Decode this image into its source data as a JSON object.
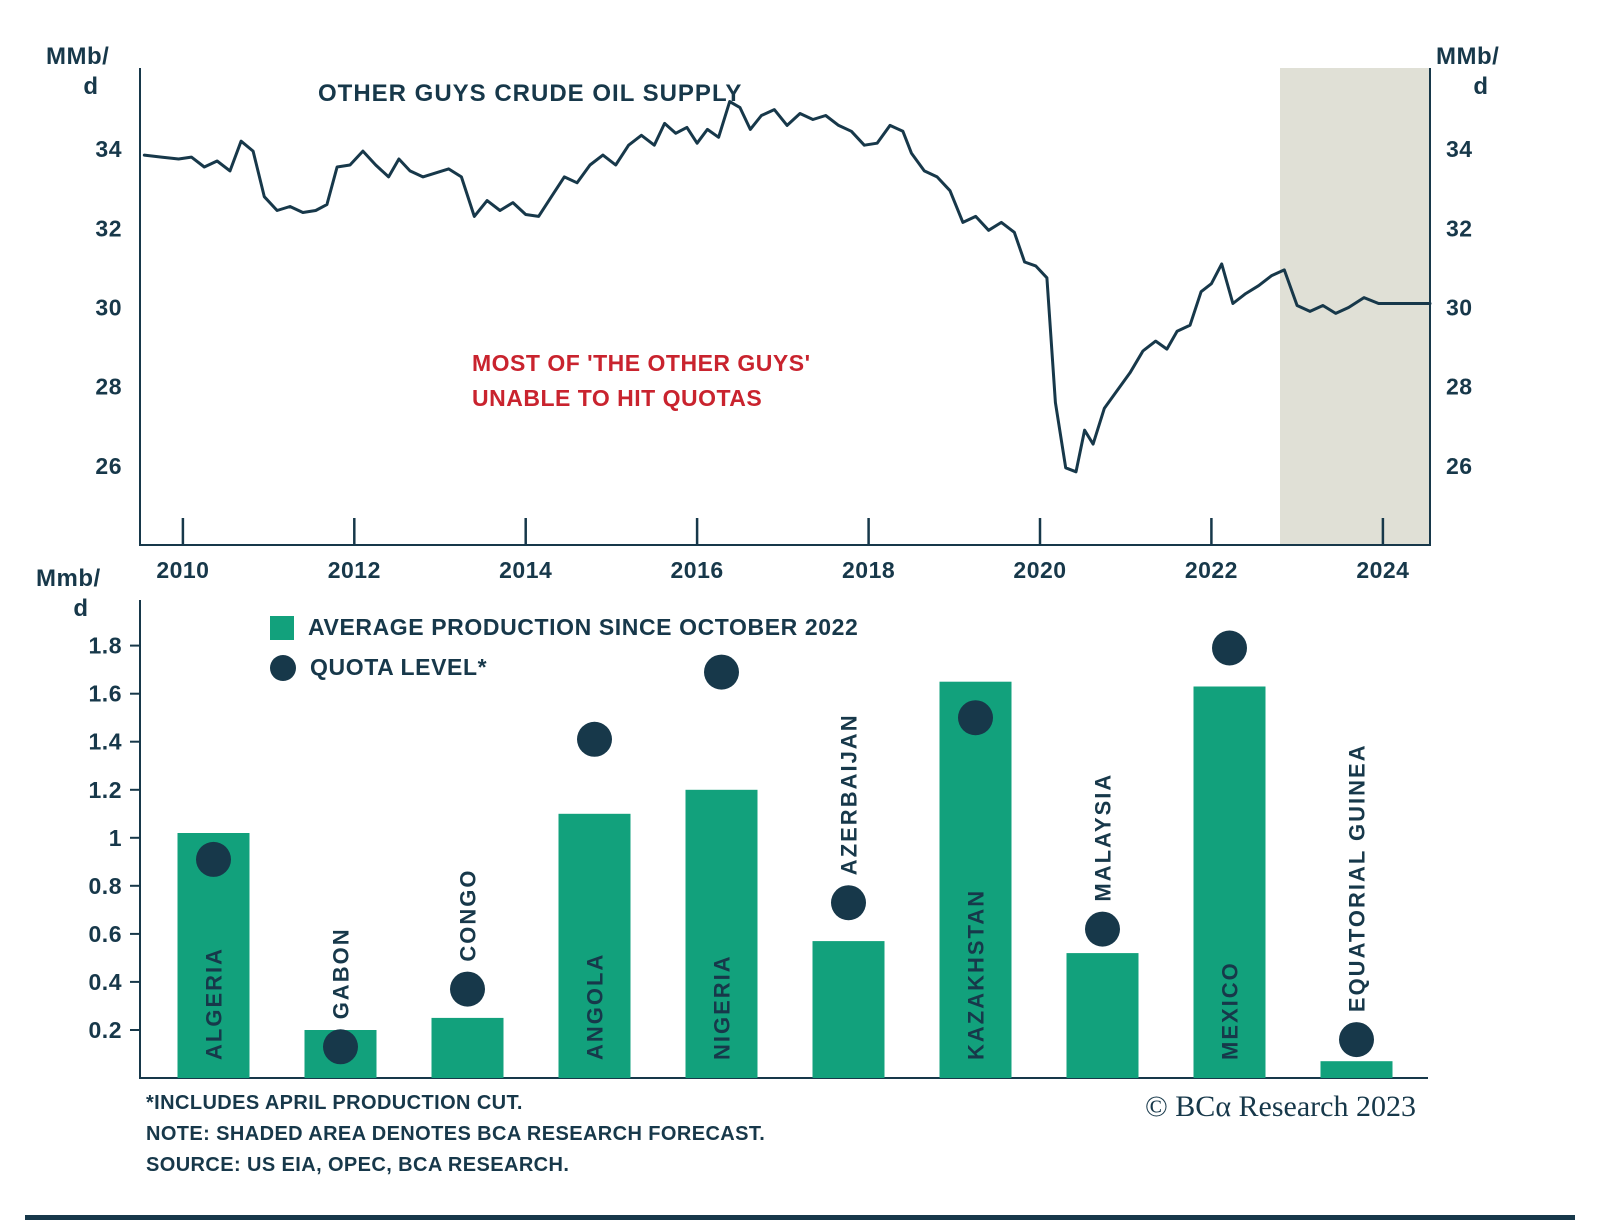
{
  "colors": {
    "navy": "#17384a",
    "green": "#12a17c",
    "red": "#c9232e",
    "shade": "#e0e0d6",
    "background": "#ffffff"
  },
  "chart_data": [
    {
      "type": "line",
      "title": "OTHER GUYS CRUDE OIL SUPPLY",
      "unit_left": [
        "MMb/",
        "d"
      ],
      "unit_right": [
        "MMb/",
        "d"
      ],
      "annotation": [
        "MOST OF 'THE OTHER GUYS'",
        "UNABLE TO HIT QUOTAS"
      ],
      "x_ticks": [
        2010,
        2012,
        2014,
        2016,
        2018,
        2020,
        2022,
        2024
      ],
      "y_ticks": [
        26,
        28,
        30,
        32,
        34
      ],
      "x_range": [
        2009.5,
        2024.55
      ],
      "y_range": [
        24.0,
        36.05
      ],
      "grid": false,
      "legend_position": "none",
      "forecast_shade": {
        "x_start": 2022.8,
        "x_end": 2024.55,
        "meaning": "SHADED AREA DENOTES BCA RESEARCH FORECAST"
      },
      "series": [
        {
          "name": "OTHER GUYS CRUDE OIL SUPPLY",
          "points": [
            [
              2009.55,
              33.85
            ],
            [
              2009.75,
              33.8
            ],
            [
              2009.95,
              33.75
            ],
            [
              2010.1,
              33.8
            ],
            [
              2010.25,
              33.55
            ],
            [
              2010.4,
              33.7
            ],
            [
              2010.55,
              33.45
            ],
            [
              2010.68,
              34.2
            ],
            [
              2010.82,
              33.95
            ],
            [
              2010.95,
              32.8
            ],
            [
              2011.1,
              32.45
            ],
            [
              2011.25,
              32.55
            ],
            [
              2011.4,
              32.4
            ],
            [
              2011.55,
              32.45
            ],
            [
              2011.68,
              32.6
            ],
            [
              2011.8,
              33.55
            ],
            [
              2011.95,
              33.6
            ],
            [
              2012.1,
              33.95
            ],
            [
              2012.25,
              33.6
            ],
            [
              2012.4,
              33.3
            ],
            [
              2012.52,
              33.75
            ],
            [
              2012.65,
              33.45
            ],
            [
              2012.8,
              33.3
            ],
            [
              2012.95,
              33.4
            ],
            [
              2013.1,
              33.5
            ],
            [
              2013.25,
              33.3
            ],
            [
              2013.4,
              32.3
            ],
            [
              2013.55,
              32.7
            ],
            [
              2013.7,
              32.45
            ],
            [
              2013.85,
              32.65
            ],
            [
              2014.0,
              32.35
            ],
            [
              2014.15,
              32.3
            ],
            [
              2014.3,
              32.8
            ],
            [
              2014.45,
              33.3
            ],
            [
              2014.6,
              33.15
            ],
            [
              2014.75,
              33.6
            ],
            [
              2014.9,
              33.85
            ],
            [
              2015.05,
              33.6
            ],
            [
              2015.2,
              34.1
            ],
            [
              2015.35,
              34.35
            ],
            [
              2015.5,
              34.1
            ],
            [
              2015.62,
              34.65
            ],
            [
              2015.75,
              34.4
            ],
            [
              2015.88,
              34.55
            ],
            [
              2016.0,
              34.15
            ],
            [
              2016.12,
              34.5
            ],
            [
              2016.25,
              34.3
            ],
            [
              2016.38,
              35.2
            ],
            [
              2016.5,
              35.05
            ],
            [
              2016.62,
              34.5
            ],
            [
              2016.75,
              34.85
            ],
            [
              2016.9,
              35.0
            ],
            [
              2017.05,
              34.6
            ],
            [
              2017.2,
              34.9
            ],
            [
              2017.35,
              34.75
            ],
            [
              2017.5,
              34.85
            ],
            [
              2017.65,
              34.6
            ],
            [
              2017.8,
              34.45
            ],
            [
              2017.95,
              34.1
            ],
            [
              2018.1,
              34.15
            ],
            [
              2018.25,
              34.6
            ],
            [
              2018.4,
              34.45
            ],
            [
              2018.5,
              33.9
            ],
            [
              2018.65,
              33.45
            ],
            [
              2018.8,
              33.3
            ],
            [
              2018.95,
              32.95
            ],
            [
              2019.1,
              32.15
            ],
            [
              2019.25,
              32.3
            ],
            [
              2019.4,
              31.95
            ],
            [
              2019.55,
              32.15
            ],
            [
              2019.7,
              31.9
            ],
            [
              2019.82,
              31.15
            ],
            [
              2019.95,
              31.05
            ],
            [
              2020.08,
              30.75
            ],
            [
              2020.18,
              27.6
            ],
            [
              2020.3,
              25.95
            ],
            [
              2020.42,
              25.85
            ],
            [
              2020.52,
              26.9
            ],
            [
              2020.62,
              26.55
            ],
            [
              2020.75,
              27.45
            ],
            [
              2020.9,
              27.9
            ],
            [
              2021.05,
              28.35
            ],
            [
              2021.2,
              28.9
            ],
            [
              2021.35,
              29.15
            ],
            [
              2021.48,
              28.95
            ],
            [
              2021.6,
              29.4
            ],
            [
              2021.75,
              29.55
            ],
            [
              2021.88,
              30.4
            ],
            [
              2022.0,
              30.6
            ],
            [
              2022.12,
              31.1
            ],
            [
              2022.25,
              30.1
            ],
            [
              2022.4,
              30.35
            ],
            [
              2022.55,
              30.55
            ],
            [
              2022.7,
              30.8
            ],
            [
              2022.85,
              30.95
            ],
            [
              2023.0,
              30.05
            ],
            [
              2023.15,
              29.9
            ],
            [
              2023.3,
              30.05
            ],
            [
              2023.45,
              29.85
            ],
            [
              2023.6,
              30.0
            ],
            [
              2023.78,
              30.25
            ],
            [
              2023.95,
              30.1
            ],
            [
              2024.2,
              30.1
            ],
            [
              2024.55,
              30.1
            ]
          ]
        }
      ]
    },
    {
      "type": "bar",
      "unit": [
        "Mmb/",
        "d"
      ],
      "y_ticks": [
        0.2,
        0.4,
        0.6,
        0.8,
        1,
        1.2,
        1.4,
        1.6,
        1.8
      ],
      "y_range": [
        0,
        1.99
      ],
      "grid": false,
      "legend_position": "top-left",
      "legend": [
        {
          "label": "AVERAGE PRODUCTION SINCE OCTOBER 2022",
          "marker": "square"
        },
        {
          "label": "QUOTA LEVEL*",
          "marker": "circle"
        }
      ],
      "categories": [
        "ALGERIA",
        "GABON",
        "CONGO",
        "ANGOLA",
        "NIGERIA",
        "AZERBAIJAN",
        "KAZAKHSTAN",
        "MALAYSIA",
        "MEXICO",
        "EQUATORIAL GUINEA"
      ],
      "series": [
        {
          "name": "AVERAGE PRODUCTION SINCE OCTOBER 2022",
          "values": [
            1.02,
            0.2,
            0.25,
            1.1,
            1.2,
            0.57,
            1.65,
            0.52,
            1.63,
            0.07
          ]
        },
        {
          "name": "QUOTA LEVEL*",
          "values": [
            0.91,
            0.13,
            0.37,
            1.41,
            1.69,
            0.73,
            1.5,
            0.62,
            1.79,
            0.16
          ]
        }
      ]
    }
  ],
  "footnotes": [
    "*INCLUDES APRIL PRODUCTION CUT.",
    "NOTE: SHADED AREA DENOTES BCA RESEARCH FORECAST.",
    "SOURCE: US EIA, OPEC, BCA RESEARCH."
  ],
  "copyright": "© BCα Research 2023"
}
